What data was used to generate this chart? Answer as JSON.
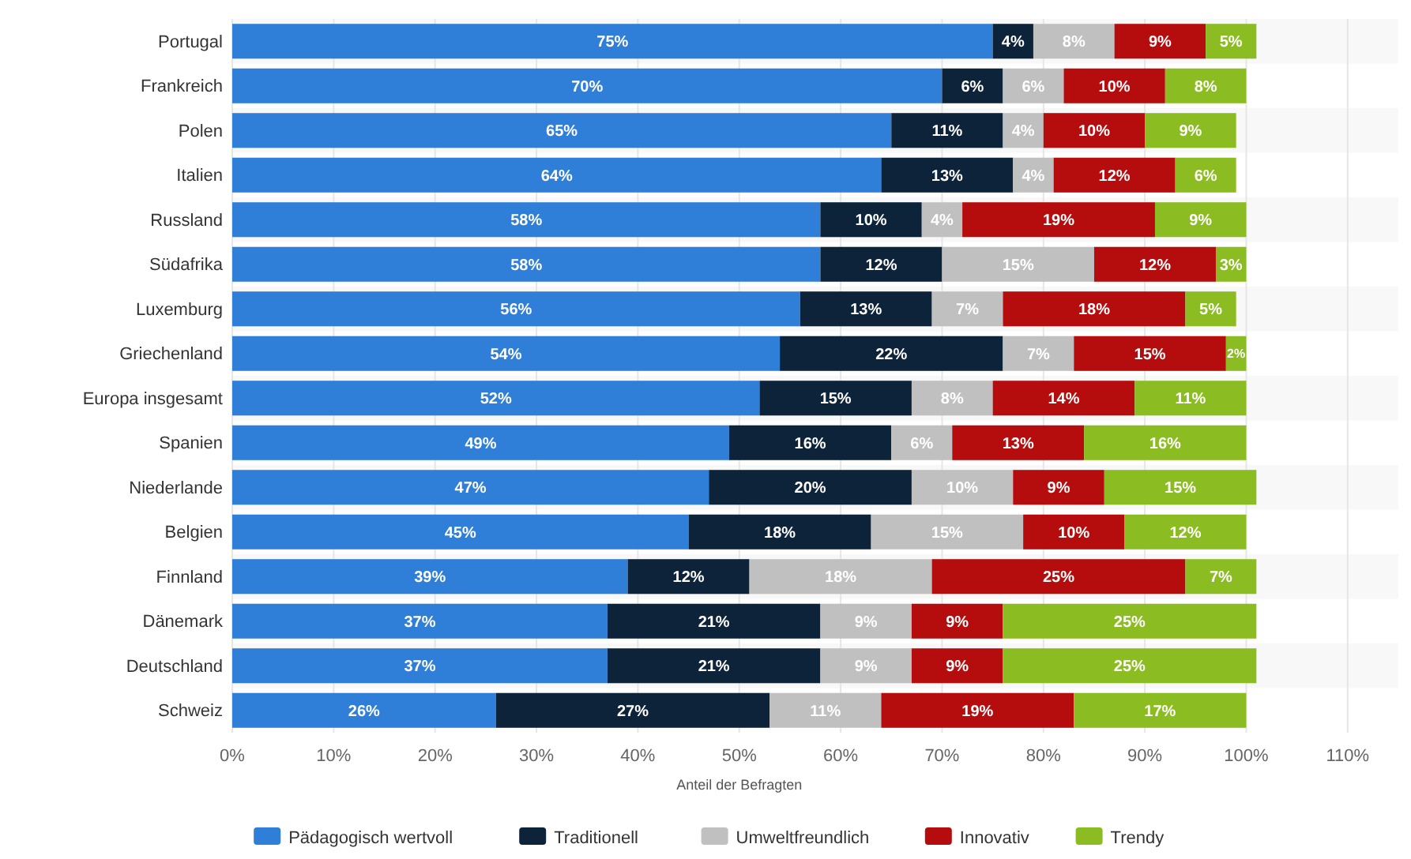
{
  "chart_data": {
    "type": "bar",
    "orientation": "horizontal",
    "stacked": true,
    "xlabel": "Anteil der Befragten",
    "categories": [
      "Portugal",
      "Frankreich",
      "Polen",
      "Italien",
      "Russland",
      "Südafrika",
      "Luxemburg",
      "Griechenland",
      "Europa insgesamt",
      "Spanien",
      "Niederlande",
      "Belgien",
      "Finnland",
      "Dänemark",
      "Deutschland",
      "Schweiz"
    ],
    "series": [
      {
        "name": "Pädagogisch wertvoll",
        "color": "#2f7ed8",
        "values": [
          75,
          70,
          65,
          64,
          58,
          58,
          56,
          54,
          52,
          49,
          47,
          45,
          39,
          37,
          37,
          26
        ],
        "value_labels": [
          "75%",
          "70%",
          "65%",
          "64%",
          "58%",
          "58%",
          "56%",
          "54%",
          "52%",
          "49%",
          "47%",
          "45%",
          "39%",
          "37%",
          "37%",
          "26%"
        ]
      },
      {
        "name": "Traditionell",
        "color": "#0d233a",
        "values": [
          4,
          6,
          11,
          13,
          10,
          12,
          13,
          22,
          15,
          16,
          20,
          18,
          12,
          21,
          21,
          27
        ],
        "value_labels": [
          "4%",
          "6%",
          "11%",
          "13%",
          "10%",
          "12%",
          "13%",
          "22%",
          "15%",
          "16%",
          "20%",
          "18%",
          "12%",
          "21%",
          "21%",
          "27%"
        ]
      },
      {
        "name": "Umweltfreundlich",
        "color": "#c0c0c0",
        "values": [
          8,
          6,
          4,
          4,
          4,
          15,
          7,
          7,
          8,
          6,
          10,
          15,
          18,
          9,
          9,
          11
        ],
        "value_labels": [
          "8%",
          "6%",
          "4%",
          "4%",
          "4%",
          "15%",
          "7%",
          "7%",
          "8%",
          "6%",
          "10%",
          "15%",
          "18%",
          "9%",
          "9%",
          "11%"
        ]
      },
      {
        "name": "Innovativ",
        "color": "#b50d0d",
        "values": [
          9,
          10,
          10,
          12,
          19,
          12,
          18,
          15,
          14,
          13,
          9,
          10,
          25,
          9,
          9,
          19
        ],
        "value_labels": [
          "9%",
          "10%",
          "10%",
          "12%",
          "19%",
          "12%",
          "18%",
          "15%",
          "14%",
          "13%",
          "9%",
          "10%",
          "25%",
          "9%",
          "9%",
          "19%"
        ]
      },
      {
        "name": "Trendy",
        "color": "#8bbc21",
        "values": [
          5,
          8,
          9,
          6,
          9,
          3,
          5,
          2,
          11,
          16,
          15,
          12,
          7,
          25,
          25,
          17
        ],
        "value_labels": [
          "5%",
          "8%",
          "9%",
          "6%",
          "9%",
          "3%",
          "5%",
          "2%",
          "11%",
          "16%",
          "15%",
          "12%",
          "7%",
          "25%",
          "25%",
          "17%"
        ]
      }
    ],
    "xlim": [
      0,
      115
    ],
    "xticks": [
      {
        "value": 0,
        "label": "0%"
      },
      {
        "value": 10,
        "label": "10%"
      },
      {
        "value": 20,
        "label": "20%"
      },
      {
        "value": 30,
        "label": "30%"
      },
      {
        "value": 40,
        "label": "40%"
      },
      {
        "value": 50,
        "label": "50%"
      },
      {
        "value": 60,
        "label": "60%"
      },
      {
        "value": 70,
        "label": "70%"
      },
      {
        "value": 80,
        "label": "80%"
      },
      {
        "value": 90,
        "label": "90%"
      },
      {
        "value": 100,
        "label": "100%"
      },
      {
        "value": 110,
        "label": "110%"
      }
    ],
    "grid": "x",
    "legend": "bottom"
  }
}
